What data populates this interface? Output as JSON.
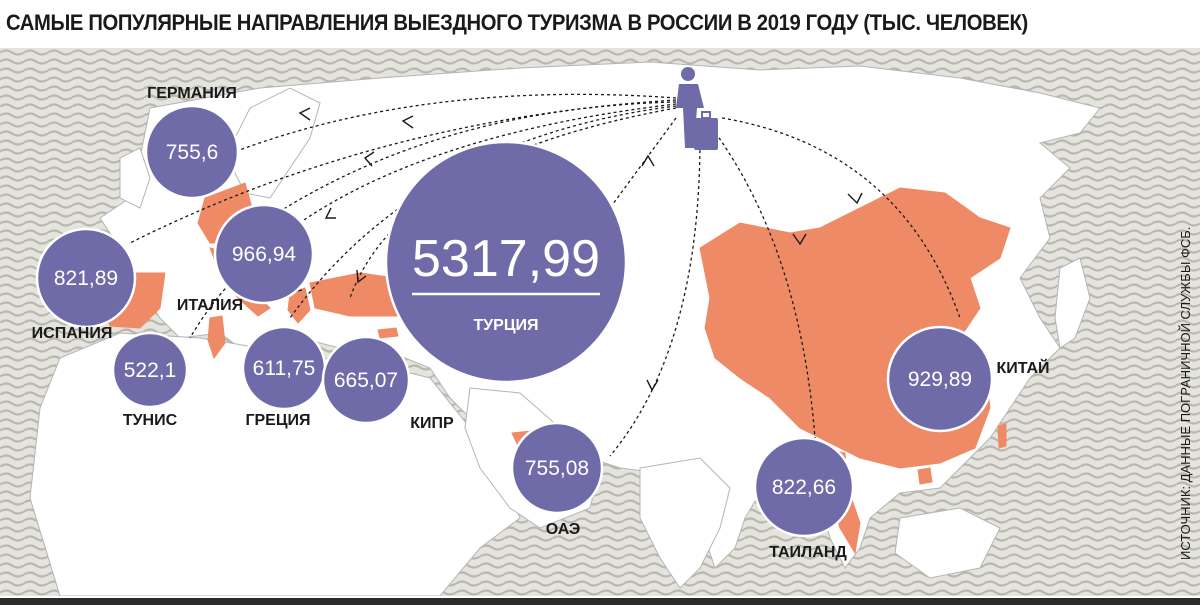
{
  "title": "САМЫЕ ПОПУЛЯРНЫЕ НАПРАВЛЕНИЯ ВЫЕЗДНОГО ТУРИЗМА В РОССИИ В 2019 ГОДУ (ТЫС. ЧЕЛОВЕК)",
  "source": "ИСТОЧНИК: ДАННЫЕ ПОГРАНИЧНОЙ СЛУЖБЫ ФСБ.",
  "colors": {
    "bubble": "#6f6aa8",
    "highlight": "#ef8a66",
    "land": "#ffffff",
    "sea_wave": "#c9c8c0",
    "text": "#1a1a1a"
  },
  "icons": [
    "traveler-with-suitcase-icon"
  ],
  "destinations": [
    {
      "id": "germany",
      "name": "ГЕРМАНИЯ",
      "value": "755,6"
    },
    {
      "id": "spain",
      "name": "ИСПАНИЯ",
      "value": "821,89"
    },
    {
      "id": "italy",
      "name": "ИТАЛИЯ",
      "value": "966,94"
    },
    {
      "id": "tunisia",
      "name": "ТУНИС",
      "value": "522,1"
    },
    {
      "id": "greece",
      "name": "ГРЕЦИЯ",
      "value": "611,75"
    },
    {
      "id": "cyprus",
      "name": "КИПР",
      "value": "665,07"
    },
    {
      "id": "turkey",
      "name": "ТУРЦИЯ",
      "value": "5317,99"
    },
    {
      "id": "uae",
      "name": "ОАЭ",
      "value": "755,08"
    },
    {
      "id": "thailand",
      "name": "ТАИЛАНД",
      "value": "822,66"
    },
    {
      "id": "china",
      "name": "КИТАЙ",
      "value": "929,89"
    }
  ]
}
